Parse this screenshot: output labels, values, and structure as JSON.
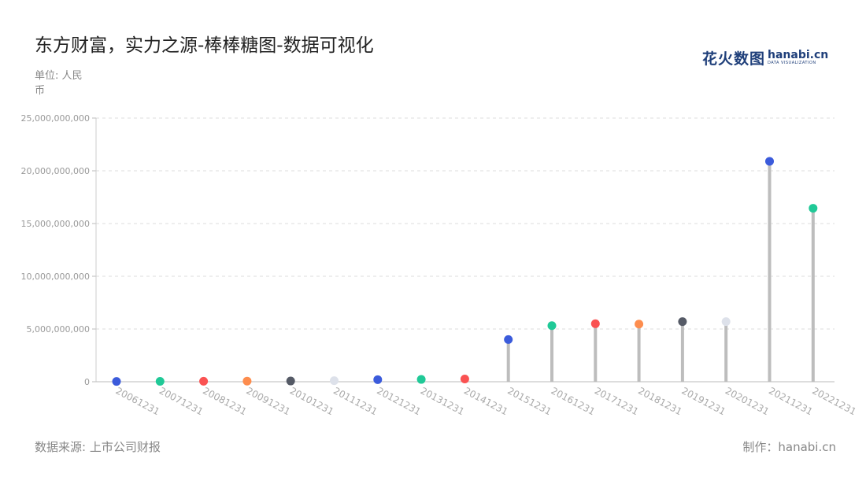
{
  "title": "东方财富，实力之源-棒棒糖图-数据可视化",
  "unit_label": "单位: 人民币",
  "source_label": "数据来源: 上市公司财报",
  "credit_label": "制作：hanabi.cn",
  "logo": {
    "cn": "花火数图",
    "en": "hanabi.cn",
    "sub": "DATA VISUALIZATION"
  },
  "chart_data": {
    "type": "lollipop",
    "title": "东方财富，实力之源-棒棒糖图-数据可视化",
    "ylabel": "单位: 人民币",
    "ylim": [
      0,
      25000000000
    ],
    "yticks": [
      {
        "value": 0,
        "label": "0"
      },
      {
        "value": 5000000000,
        "label": "5,000,000,000"
      },
      {
        "value": 10000000000,
        "label": "10,000,000,000"
      },
      {
        "value": 15000000000,
        "label": "15,000,000,000"
      },
      {
        "value": 20000000000,
        "label": "20,000,000,000"
      },
      {
        "value": 25000000000,
        "label": "25,000,000,000"
      }
    ],
    "grid": true,
    "categories": [
      "20061231",
      "20071231",
      "20081231",
      "20091231",
      "20101231",
      "20111231",
      "20121231",
      "20131231",
      "20141231",
      "20151231",
      "20161231",
      "20171231",
      "20181231",
      "20191231",
      "20201231",
      "20211231",
      "20221231"
    ],
    "values": [
      30000000,
      40000000,
      50000000,
      60000000,
      70000000,
      100000000,
      200000000,
      220000000,
      260000000,
      4000000000,
      5320000000,
      5500000000,
      5470000000,
      5700000000,
      5700000000,
      20900000000,
      16450000000
    ],
    "colors": [
      "#3b5bdb",
      "#20c997",
      "#fa5252",
      "#fd8d4e",
      "#555a66",
      "#dde1ea",
      "#3b5bdb",
      "#20c997",
      "#fa5252",
      "#3b5bdb",
      "#20c997",
      "#fa5252",
      "#fd8d4e",
      "#555a66",
      "#dde1ea",
      "#3b5bdb",
      "#20c997"
    ]
  }
}
